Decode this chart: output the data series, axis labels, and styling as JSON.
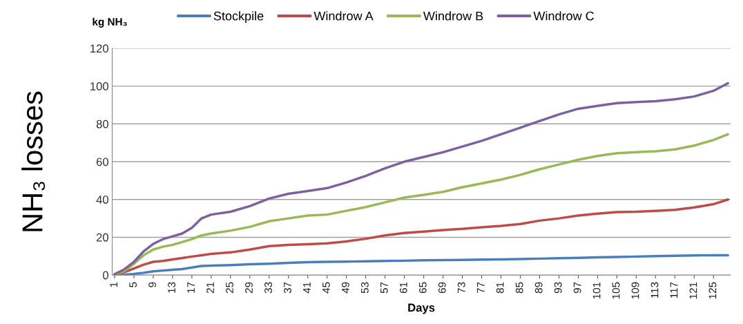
{
  "chart_data": {
    "type": "line",
    "ylabel": "NH₃ losses",
    "xlabel": "Days",
    "annotations": [
      "kg NH₃"
    ],
    "x": [
      1,
      3,
      5,
      7,
      9,
      11,
      13,
      15,
      17,
      19,
      21,
      25,
      29,
      33,
      37,
      41,
      45,
      49,
      53,
      57,
      61,
      65,
      69,
      73,
      77,
      81,
      85,
      89,
      93,
      97,
      101,
      105,
      109,
      113,
      117,
      121,
      125,
      128
    ],
    "series": [
      {
        "name": "Stockpile",
        "color": "#4a7ebb",
        "values": [
          0,
          0.2,
          0.6,
          1.2,
          2,
          2.4,
          2.8,
          3.2,
          4,
          4.8,
          5,
          5.3,
          5.7,
          6,
          6.5,
          6.8,
          7,
          7.1,
          7.3,
          7.5,
          7.6,
          7.8,
          7.9,
          8,
          8.2,
          8.3,
          8.5,
          8.7,
          8.9,
          9.1,
          9.4,
          9.6,
          9.8,
          10,
          10.2,
          10.4,
          10.5,
          10.5
        ]
      },
      {
        "name": "Windrow A",
        "color": "#be4b48",
        "values": [
          0.2,
          1.5,
          3.5,
          5.5,
          7,
          7.5,
          8.3,
          9,
          9.8,
          10.5,
          11.2,
          12,
          13.5,
          15.3,
          16,
          16.3,
          16.8,
          17.8,
          19.2,
          21,
          22.3,
          23,
          23.8,
          24.5,
          25.3,
          26,
          27,
          28.8,
          30,
          31.5,
          32.5,
          33.3,
          33.5,
          34,
          34.5,
          35.8,
          37.5,
          40
        ]
      },
      {
        "name": "Windrow B",
        "color": "#98b954",
        "values": [
          0.3,
          2,
          6,
          10.5,
          13.5,
          15,
          16,
          17.5,
          19,
          21,
          22,
          23.5,
          25.5,
          28.5,
          30,
          31.5,
          32,
          34,
          36,
          38.5,
          41,
          42.5,
          44,
          46.5,
          48.5,
          50.5,
          53,
          56,
          58.5,
          61,
          63,
          64.5,
          65,
          65.5,
          66.5,
          68.5,
          71.5,
          74.5
        ]
      },
      {
        "name": "Windrow C",
        "color": "#7d60a0",
        "values": [
          0.5,
          3,
          7,
          12.5,
          16.5,
          19,
          20.5,
          22,
          25,
          30,
          32,
          33.5,
          36.5,
          40.5,
          43,
          44.5,
          46,
          49,
          52.5,
          56.5,
          60,
          62.5,
          65,
          68,
          71,
          74.5,
          78,
          81.5,
          85,
          88,
          89.5,
          91,
          91.5,
          92,
          93,
          94.5,
          97.5,
          101.5
        ]
      }
    ],
    "xlim": [
      0.5,
      128.5
    ],
    "xticks": [
      1,
      5,
      9,
      13,
      17,
      21,
      25,
      29,
      33,
      37,
      41,
      45,
      49,
      53,
      57,
      61,
      65,
      69,
      73,
      77,
      81,
      85,
      89,
      93,
      97,
      101,
      105,
      109,
      113,
      117,
      121,
      125
    ],
    "ylim": [
      0,
      120
    ],
    "yticks": [
      0,
      20,
      40,
      60,
      80,
      100,
      120
    ],
    "grid": "y",
    "legend": "top",
    "marker": "none",
    "line_style": "solid"
  }
}
